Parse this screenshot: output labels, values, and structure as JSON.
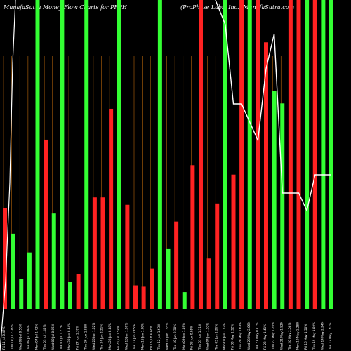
{
  "chart_data": {
    "type": "bar",
    "title_left": "MunafaSutra  Money Flow  Charts for PRPH",
    "title_right": "(ProPhase   Labs, Inc.) MunafaSutra.com",
    "categories": [
      "Fri 11 Jul 0.47%",
      "Thu 10 Jul 2.08%",
      "Wed 09 Jul 0.56%",
      "Tue 08 Jul 1.06%",
      "Mon 07 Jul 1.42%",
      "Thu 03 Jul 1.45%",
      "Wed 02 Jul 0.85%",
      "Tue 01 Jul 1.27%",
      "Mon 30 Jun 0.44%",
      "Fri 27 Jun 1.39%",
      "Thu 26 Jun 1.88%",
      "Wed 25 Jun 1.52%",
      "Tue 24 Jun 2.21%",
      "Mon 23 Jun 0.48%",
      "Fri 20 Jun 1.58%",
      "Wed 18 Jun 1.36%",
      "Tue 17 Jun 2.05%",
      "Mon 16 Jun 1.99%",
      "Fri 13 Jun 0.88%",
      "Thu 12 Jun 1.63%",
      "Wed 11 Jun 1.65%",
      "Tue 10 Jun 2.38%",
      "Mon 09 Jun 1.49%",
      "Fri 06 Jun 0.95%",
      "Thu 05 Jun 1.71%",
      "Wed 04 Jun 1.02%",
      "Tue 03 Jun 1.26%",
      "Mon 02 Jun 2.07%",
      "Fri 30 May 1.32%",
      "Thu 29 May 1.63%",
      "Wed 28 May 2.06%",
      "Tue 27 May 0.71%",
      "Fri 23 May 1.41%",
      "Thu 22 May 1.26%",
      "Wed 21 May 1.52%",
      "Tue 20 May 2.08%",
      "Mon 19 May 1.28%",
      "Fri 16 May 1.50%",
      "Thu 15 May 1.89%",
      "Wed 14 May 2.24%",
      "Tue 13 May 1.42%"
    ],
    "bar_colors": [
      "red",
      "green",
      "green",
      "green",
      "green",
      "red",
      "green",
      "green",
      "green",
      "red",
      "green",
      "red",
      "red",
      "red",
      "green",
      "red",
      "red",
      "red",
      "red",
      "green",
      "green",
      "red",
      "green",
      "red",
      "red",
      "red",
      "red",
      "green",
      "red",
      "red",
      "green",
      "red",
      "red",
      "green",
      "green",
      "red",
      "red",
      "green",
      "red",
      "green",
      "green"
    ],
    "values": [
      150,
      112,
      44,
      84,
      460,
      252,
      142,
      460,
      40,
      52,
      460,
      166,
      166,
      298,
      460,
      155,
      35,
      33,
      60,
      460,
      90,
      130,
      25,
      214,
      460,
      75,
      157,
      460,
      200,
      460,
      460,
      460,
      397,
      325,
      306,
      460,
      460,
      460,
      460,
      460,
      460
    ],
    "ylim": [
      0,
      460
    ],
    "price_line": [
      null,
      null,
      null,
      null,
      null,
      null,
      null,
      null,
      null,
      null,
      null,
      null,
      null,
      null,
      null,
      null,
      null,
      null,
      null,
      null,
      null,
      null,
      null,
      null,
      null,
      null,
      null,
      465,
      352,
      352,
      null,
      300,
      402,
      452,
      225,
      225,
      225,
      200,
      251,
      251,
      251
    ],
    "price_ylim": [
      0,
      500
    ],
    "grid": false,
    "colors": {
      "background": "#000000",
      "green": "#33ff33",
      "red": "#ff2222",
      "gridline": "#b8660b",
      "line": "#ffffff"
    }
  }
}
